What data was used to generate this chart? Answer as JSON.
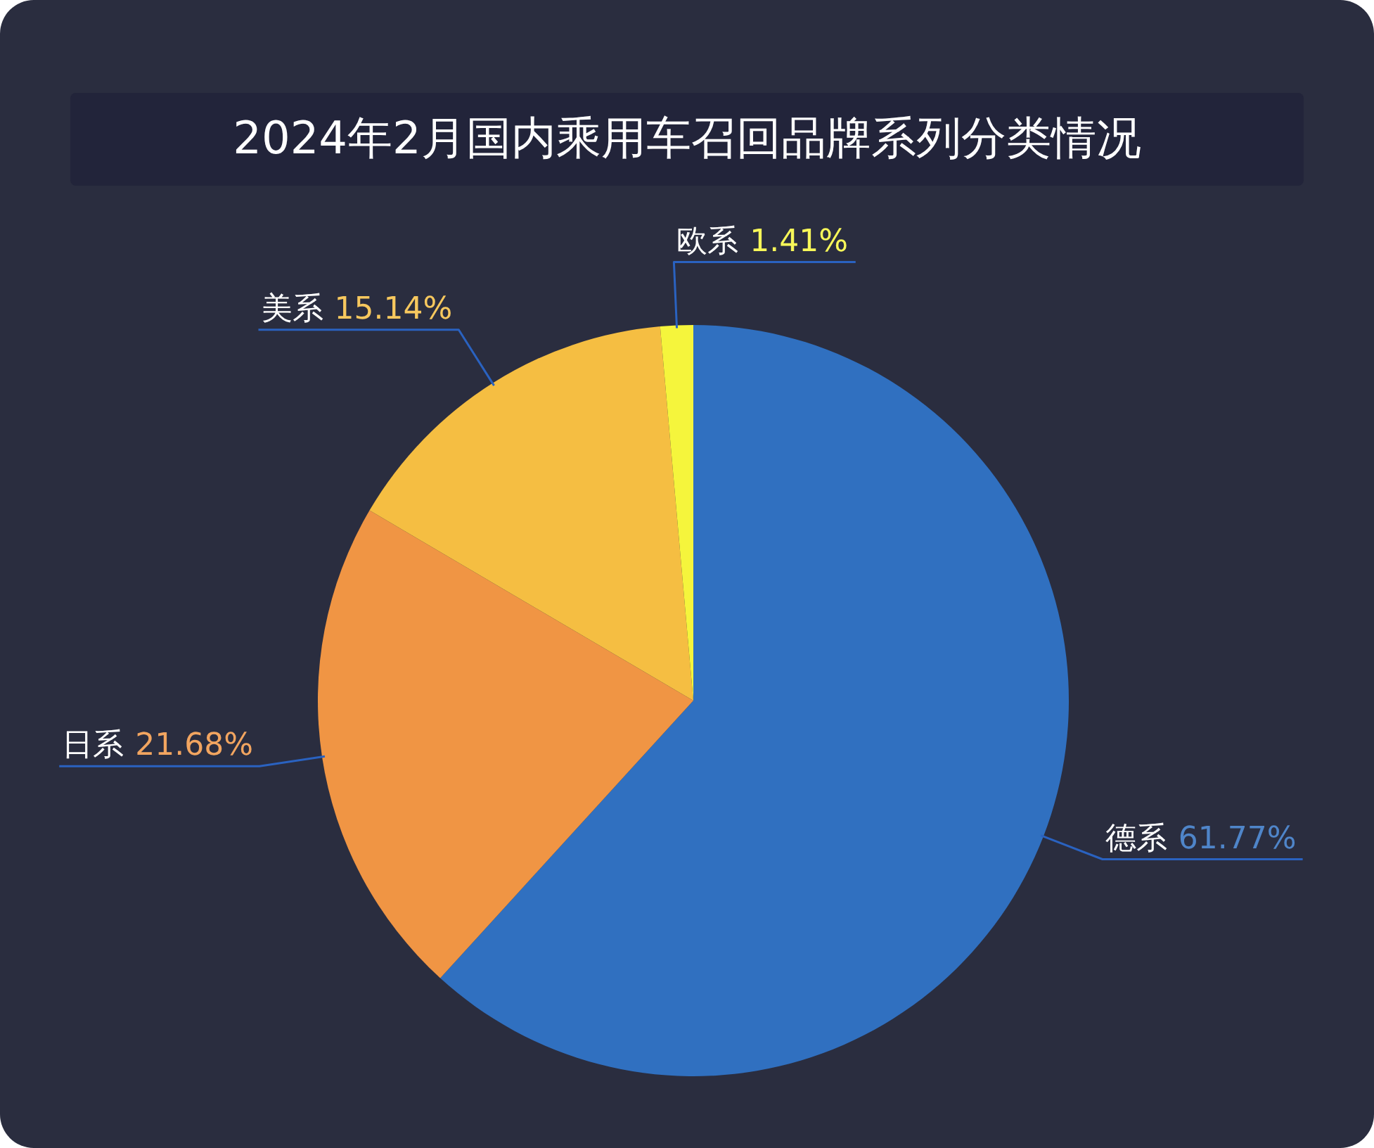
{
  "chart_data": {
    "type": "pie",
    "title": "2024年2月国内乘用车召回品牌系列分类情况",
    "categories": [
      "德系",
      "日系",
      "美系",
      "欧系"
    ],
    "values": [
      61.77,
      21.68,
      15.14,
      1.41
    ],
    "colors": [
      "#3070c0",
      "#f09544",
      "#f5be42",
      "#f5f53c"
    ],
    "value_labels": [
      "61.77%",
      "21.68%",
      "15.14%",
      "1.41%"
    ],
    "legend": false
  }
}
